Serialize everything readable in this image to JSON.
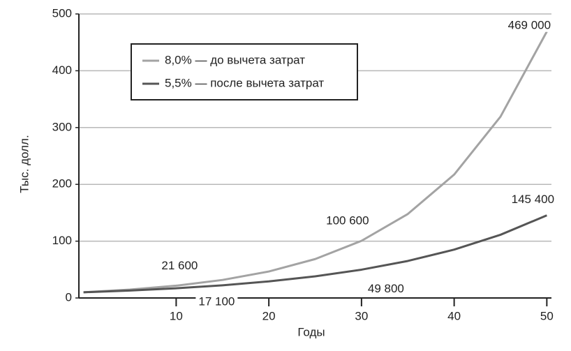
{
  "chart_data": {
    "type": "line",
    "x_label": "Годы",
    "y_label": "Тыс. долл.",
    "x": [
      0,
      5,
      10,
      15,
      20,
      25,
      30,
      35,
      40,
      45,
      50
    ],
    "series": [
      {
        "name": "8,0% — до вычета затрат",
        "color": "#a3a3a3",
        "values": [
          10,
          14.69,
          21.6,
          31.72,
          46.61,
          68.48,
          100.6,
          147.85,
          217.25,
          319.2,
          469
        ],
        "value_labels": [
          null,
          null,
          "21 600",
          null,
          null,
          null,
          "100 600",
          null,
          null,
          null,
          "469 000"
        ]
      },
      {
        "name": "5,5% — после вычета затрат",
        "color": "#555555",
        "values": [
          10,
          13.07,
          17.1,
          22.32,
          29.18,
          38.13,
          49.8,
          65.14,
          85.13,
          111.26,
          145.4
        ],
        "value_labels": [
          null,
          null,
          "17 100",
          null,
          null,
          null,
          "49 800",
          null,
          null,
          null,
          "145 400"
        ]
      }
    ],
    "xlim": [
      -0.5,
      50.5
    ],
    "xticks": [
      10,
      20,
      30,
      40,
      50
    ],
    "ylim": [
      0,
      500
    ],
    "yticks": [
      0,
      100,
      200,
      300,
      400,
      500
    ],
    "grid": true
  }
}
